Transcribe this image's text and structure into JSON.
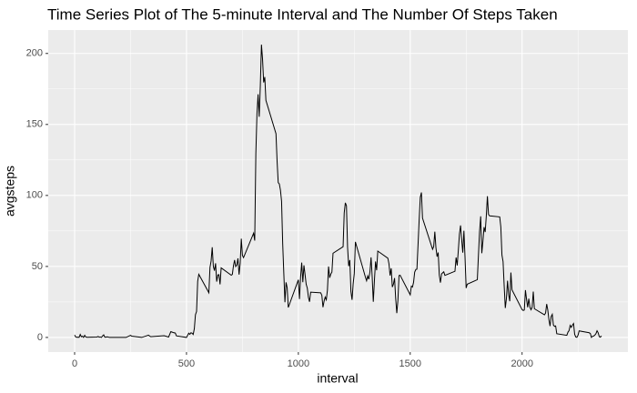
{
  "chart_data": {
    "type": "line",
    "title": "Time Series Plot of The 5-minute Interval and The Number Of Steps Taken",
    "x_label": "interval",
    "y_label": "avgsteps",
    "x": [
      0,
      5,
      10,
      15,
      20,
      25,
      30,
      35,
      40,
      45,
      50,
      55,
      100,
      105,
      110,
      115,
      120,
      125,
      130,
      135,
      140,
      145,
      150,
      155,
      200,
      230,
      250,
      255,
      300,
      330,
      340,
      400,
      420,
      430,
      440,
      450,
      455,
      500,
      510,
      515,
      520,
      525,
      530,
      535,
      540,
      545,
      550,
      555,
      600,
      605,
      610,
      615,
      620,
      625,
      630,
      635,
      640,
      645,
      650,
      655,
      700,
      705,
      710,
      715,
      720,
      725,
      730,
      735,
      740,
      745,
      750,
      755,
      800,
      805,
      810,
      815,
      820,
      825,
      830,
      835,
      840,
      845,
      850,
      855,
      900,
      905,
      910,
      915,
      920,
      925,
      930,
      935,
      940,
      945,
      950,
      955,
      1000,
      1005,
      1010,
      1015,
      1020,
      1025,
      1030,
      1035,
      1040,
      1045,
      1050,
      1055,
      1100,
      1105,
      1110,
      1115,
      1120,
      1125,
      1130,
      1135,
      1140,
      1145,
      1150,
      1155,
      1200,
      1205,
      1210,
      1215,
      1220,
      1225,
      1230,
      1235,
      1240,
      1245,
      1250,
      1255,
      1300,
      1305,
      1310,
      1315,
      1320,
      1325,
      1330,
      1335,
      1340,
      1345,
      1350,
      1355,
      1400,
      1405,
      1410,
      1415,
      1420,
      1425,
      1430,
      1435,
      1440,
      1445,
      1450,
      1455,
      1500,
      1505,
      1510,
      1515,
      1520,
      1525,
      1530,
      1535,
      1540,
      1545,
      1550,
      1555,
      1600,
      1605,
      1610,
      1615,
      1620,
      1625,
      1630,
      1635,
      1640,
      1645,
      1650,
      1655,
      1700,
      1705,
      1710,
      1715,
      1720,
      1725,
      1730,
      1735,
      1740,
      1745,
      1750,
      1755,
      1800,
      1805,
      1810,
      1815,
      1820,
      1825,
      1830,
      1835,
      1840,
      1845,
      1850,
      1855,
      1900,
      1905,
      1910,
      1915,
      1920,
      1925,
      1930,
      1935,
      1940,
      1945,
      1950,
      1955,
      2000,
      2005,
      2010,
      2015,
      2020,
      2025,
      2030,
      2035,
      2040,
      2045,
      2050,
      2055,
      2100,
      2105,
      2110,
      2115,
      2120,
      2125,
      2130,
      2135,
      2140,
      2145,
      2150,
      2155,
      2200,
      2205,
      2210,
      2215,
      2220,
      2225,
      2230,
      2235,
      2240,
      2245,
      2250,
      2255,
      2300,
      2305,
      2310,
      2315,
      2320,
      2325,
      2330,
      2335,
      2340,
      2345,
      2350,
      2355
    ],
    "series": [
      {
        "name": "avgsteps",
        "color": "#000000",
        "values": [
          1.7,
          0.3,
          0.1,
          0.2,
          0.1,
          2.1,
          0.5,
          0.9,
          0,
          1.5,
          0.3,
          0.1,
          0.3,
          0.7,
          0.2,
          0.3,
          0,
          1.1,
          1.8,
          0.2,
          0.2,
          0.4,
          0.3,
          0,
          0,
          0,
          1.5,
          0.9,
          0,
          1.6,
          0.5,
          1.2,
          0.3,
          4.1,
          3.5,
          3.1,
          1.1,
          0,
          3,
          2.2,
          3.3,
          3,
          2.1,
          6.1,
          16,
          18.3,
          39.5,
          44.5,
          31.5,
          49.3,
          53.8,
          63.5,
          50,
          47,
          52.2,
          39.3,
          44,
          44.2,
          37.4,
          49,
          43.8,
          44.4,
          50.5,
          54.5,
          49.9,
          51,
          55.7,
          44.3,
          52.3,
          69.5,
          57.8,
          56.2,
          73.4,
          68.2,
          129.4,
          157.5,
          171.2,
          155.4,
          177.3,
          206.2,
          195.9,
          179.6,
          183.4,
          167,
          143.5,
          124,
          109.1,
          108.1,
          103.7,
          95.9,
          66.2,
          45.2,
          24.8,
          38.8,
          35,
          21.1,
          40.6,
          27,
          42.4,
          52.7,
          38.9,
          50.8,
          44.3,
          37.4,
          34.7,
          28.3,
          25.1,
          31.9,
          31.4,
          29.7,
          21.3,
          25.5,
          28.4,
          26.5,
          33.4,
          50,
          42,
          44.6,
          46,
          59.3,
          63.9,
          87.7,
          94.8,
          92.8,
          63.4,
          50.2,
          54.5,
          32.4,
          26.5,
          37.7,
          45,
          67.3,
          42.3,
          39.9,
          43.3,
          41,
          46.2,
          56.4,
          42.8,
          25.1,
          39.9,
          53.5,
          47.3,
          60.8,
          55.8,
          51.9,
          43.6,
          48.7,
          35.5,
          37.5,
          41.8,
          27.5,
          17.1,
          26.1,
          43.6,
          43.8,
          30,
          36.1,
          35.5,
          38.8,
          46,
          47.8,
          48.1,
          65.3,
          82.9,
          98.7,
          102.1,
          84,
          62.1,
          64.1,
          74.5,
          63.2,
          56.9,
          59.8,
          43.9,
          38.6,
          44.7,
          45.5,
          46.2,
          43.7,
          46.6,
          56.3,
          50.7,
          61.2,
          72.7,
          78.9,
          68.9,
          59.7,
          75.1,
          56.5,
          34.8,
          37.5,
          40.7,
          58,
          74.7,
          85.3,
          59.3,
          67.8,
          77.7,
          74.2,
          85.3,
          99.5,
          86.6,
          85.6,
          84.9,
          77.8,
          58,
          53.4,
          36.3,
          20.7,
          27.4,
          40,
          30.2,
          25.5,
          45.7,
          33.5,
          19.6,
          19,
          19.3,
          33.3,
          26.8,
          21.2,
          27.3,
          21.3,
          19.5,
          21.3,
          32.3,
          20.2,
          15.9,
          17.2,
          23.5,
          19.2,
          12.5,
          8,
          14.7,
          16.3,
          8.7,
          7.8,
          8.1,
          2.6,
          1.5,
          3.7,
          4.8,
          8.5,
          7.1,
          8.7,
          9.8,
          2.2,
          0.3,
          0.1,
          1.6,
          4.6,
          3.3,
          2.8,
          0,
          0.8,
          1,
          1.6,
          2.6,
          4.7,
          3.3,
          0.6,
          0.2,
          1.1
        ]
      }
    ],
    "xlim": [
      -118,
      2473
    ],
    "xticks": [
      0,
      500,
      1000,
      1500,
      2000
    ],
    "xminor": [
      250,
      750,
      1250,
      1750,
      2250
    ],
    "ylim": [
      -10.3,
      216.5
    ],
    "yticks": [
      0,
      50,
      100,
      150,
      200
    ],
    "yminor": [
      25,
      75,
      125,
      175
    ],
    "grid": true,
    "panel_color": "#ebebeb"
  }
}
